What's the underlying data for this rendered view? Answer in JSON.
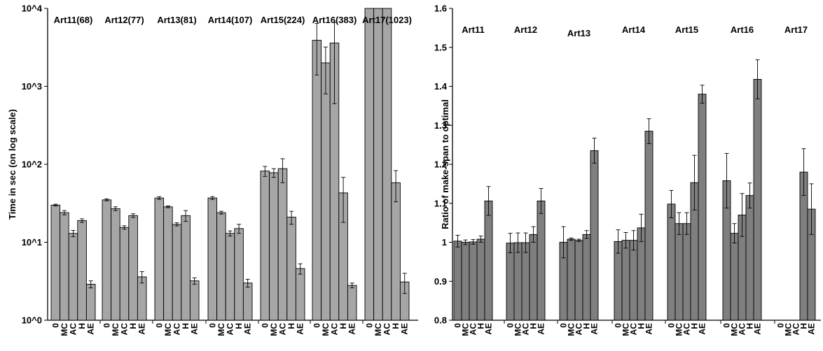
{
  "chart_data": [
    {
      "type": "bar",
      "scale": "log",
      "ylabel": "Time in sec (on log scale)",
      "ylim": [
        1,
        10000
      ],
      "yticks": [
        1,
        10,
        100,
        1000,
        10000
      ],
      "ytick_labels": [
        "10^0",
        "10^1",
        "10^2",
        "10^3",
        "10^4"
      ],
      "bar_color": "#a6a6a6",
      "grid": false,
      "methods": [
        "0",
        "MC",
        "AC",
        "H",
        "AE"
      ],
      "groups": [
        {
          "label": "Art11(68)",
          "values": [
            30,
            24,
            13,
            19,
            2.9
          ],
          "errors": [
            0.8,
            1.5,
            1.2,
            1.0,
            0.3
          ]
        },
        {
          "label": "Art12(77)",
          "values": [
            35,
            27,
            15.5,
            22,
            3.6
          ],
          "errors": [
            1.0,
            1.5,
            0.8,
            1.2,
            0.6
          ]
        },
        {
          "label": "Art13(81)",
          "values": [
            37,
            28.5,
            17,
            22,
            3.2
          ],
          "errors": [
            1.5,
            0.8,
            0.8,
            3.5,
            0.3
          ]
        },
        {
          "label": "Art14(107)",
          "values": [
            37,
            24,
            13,
            15,
            3.0
          ],
          "errors": [
            1.5,
            1.0,
            1.0,
            2.0,
            0.35
          ]
        },
        {
          "label": "Art15(224)",
          "values": [
            82,
            78,
            88,
            21,
            4.6
          ],
          "errors": [
            12,
            10,
            30,
            4,
            0.7
          ]
        },
        {
          "label": "Art16(383)",
          "values": [
            3900,
            2000,
            3600,
            43,
            2.8
          ],
          "errors": [
            2500,
            1200,
            3000,
            25,
            0.2
          ]
        },
        {
          "label": "Art17(1023)",
          "values": [
            10000,
            10000,
            10000,
            58,
            3.1
          ],
          "errors": [
            0,
            0,
            0,
            25,
            0.9
          ]
        }
      ]
    },
    {
      "type": "bar",
      "scale": "linear",
      "ylabel": "Ratio of make-span to optimal",
      "ylim": [
        0.8,
        1.6
      ],
      "yticks": [
        0.8,
        0.9,
        1,
        1.1,
        1.2,
        1.3,
        1.4,
        1.5,
        1.6
      ],
      "ytick_labels": [
        "0.8",
        "0.9",
        "1",
        "1.1",
        "1.2",
        "1.3",
        "1.4",
        "1.5",
        "1.6"
      ],
      "bar_color": "#7f7f7f",
      "grid": false,
      "methods": [
        "0",
        "MC",
        "AC",
        "H",
        "AE"
      ],
      "groups": [
        {
          "label": "Art11",
          "values": [
            1.003,
            1.0,
            1.001,
            1.008,
            1.106
          ],
          "errors": [
            0.015,
            0.006,
            0.006,
            0.008,
            0.037
          ]
        },
        {
          "label": "Art12",
          "values": [
            0.998,
            0.999,
            0.999,
            1.02,
            1.106
          ],
          "errors": [
            0.025,
            0.025,
            0.025,
            0.02,
            0.032
          ]
        },
        {
          "label": "Art13",
          "values": [
            1.0,
            1.008,
            1.005,
            1.02,
            1.235
          ],
          "errors": [
            0.04,
            0.003,
            0.003,
            0.01,
            0.032
          ]
        },
        {
          "label": "Art14",
          "values": [
            1.002,
            1.005,
            1.005,
            1.037,
            1.285
          ],
          "errors": [
            0.03,
            0.02,
            0.025,
            0.035,
            0.032
          ]
        },
        {
          "label": "Art15",
          "values": [
            1.098,
            1.048,
            1.048,
            1.153,
            1.38
          ],
          "errors": [
            0.035,
            0.028,
            0.028,
            0.07,
            0.023
          ]
        },
        {
          "label": "Art16",
          "values": [
            1.158,
            1.023,
            1.07,
            1.12,
            1.418
          ],
          "errors": [
            0.07,
            0.025,
            0.055,
            0.032,
            0.05
          ]
        },
        {
          "label": "Art17",
          "values": [
            null,
            null,
            null,
            1.18,
            1.085
          ],
          "errors": [
            0,
            0,
            0,
            0.06,
            0.065
          ]
        }
      ]
    }
  ]
}
